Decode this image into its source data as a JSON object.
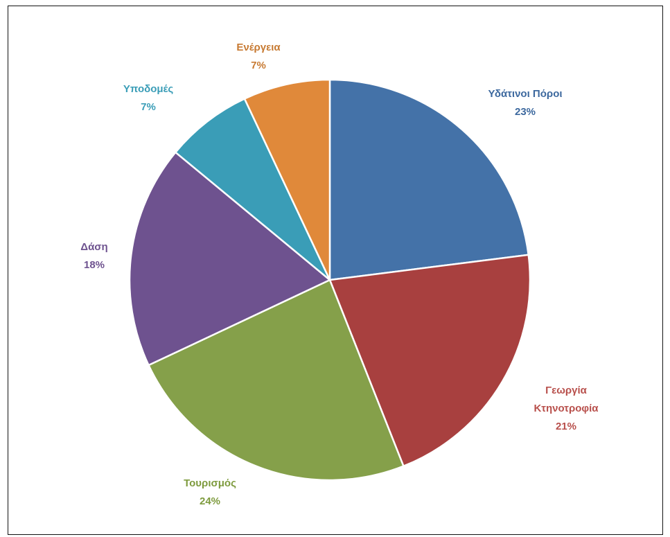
{
  "chart_data": {
    "type": "pie",
    "title": "",
    "slices": [
      {
        "name": "Υδάτινοι Πόροι",
        "name_lines": [
          "Υδάτινοι Πόροι"
        ],
        "percent_label": "23%",
        "value": 23,
        "color": "#4472A8"
      },
      {
        "name": "Γεωργία Κτηνοτροφία",
        "name_lines": [
          "Γεωργία",
          "Κτηνοτροφία"
        ],
        "percent_label": "21%",
        "value": 21,
        "color": "#A8403F"
      },
      {
        "name": "Τουρισμός",
        "name_lines": [
          "Τουρισμός"
        ],
        "percent_label": "24%",
        "value": 24,
        "color": "#85A04A"
      },
      {
        "name": "Δάση",
        "name_lines": [
          "Δάση"
        ],
        "percent_label": "18%",
        "value": 18,
        "color": "#6E528F"
      },
      {
        "name": "Υποδομές",
        "name_lines": [
          "Υποδομές"
        ],
        "percent_label": "7%",
        "value": 7,
        "color": "#3A9DB7"
      },
      {
        "name": "Ενέργεια",
        "name_lines": [
          "Ενέργεια"
        ],
        "percent_label": "7%",
        "value": 7,
        "color": "#E0893A"
      }
    ],
    "label_colors": {
      "Υδάτινοι Πόροι": "#3C689E",
      "Γεωργία Κτηνοτροφία": "#B8504C",
      "Τουρισμός": "#7E9B3E",
      "Δάση": "#6E528F",
      "Υποδομές": "#3A9DB7",
      "Ενέργεια": "#C77A32"
    },
    "start_angle_deg": 0,
    "direction": "clockwise",
    "legend": "none",
    "data_labels": "outside, name and percent"
  }
}
